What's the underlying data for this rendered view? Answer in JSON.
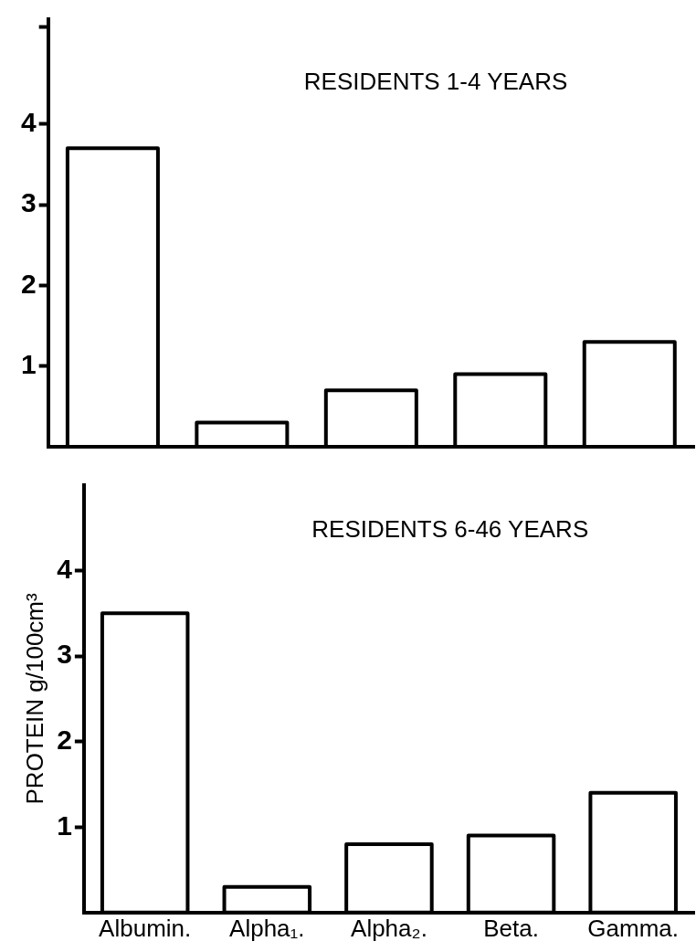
{
  "chart_data": [
    {
      "type": "bar",
      "title": "RESIDENTS 1-4 YEARS",
      "categories": [
        null,
        null,
        null,
        null,
        null
      ],
      "values": [
        3.7,
        0.3,
        0.7,
        0.9,
        1.3
      ],
      "color": "#000000",
      "ylim": [
        0,
        5.3
      ],
      "yticks": [
        1,
        2,
        3,
        4,
        {
          "value": 5.2,
          "label": null
        }
      ],
      "grid": false,
      "legend": false,
      "tick_labels": "y"
    },
    {
      "type": "bar",
      "title": "RESIDENTS 6-46 YEARS",
      "ylabel": "PROTEIN g/100cm³",
      "categories": [
        "Albumin.",
        "Alpha₁.",
        "Alpha₂.",
        "Beta.",
        "Gamma."
      ],
      "values": [
        3.5,
        0.3,
        0.8,
        0.9,
        1.4
      ],
      "color": "#000000",
      "ylim": [
        0,
        5
      ],
      "yticks": [
        1,
        2,
        3,
        4
      ],
      "grid": false,
      "legend": false
    }
  ]
}
